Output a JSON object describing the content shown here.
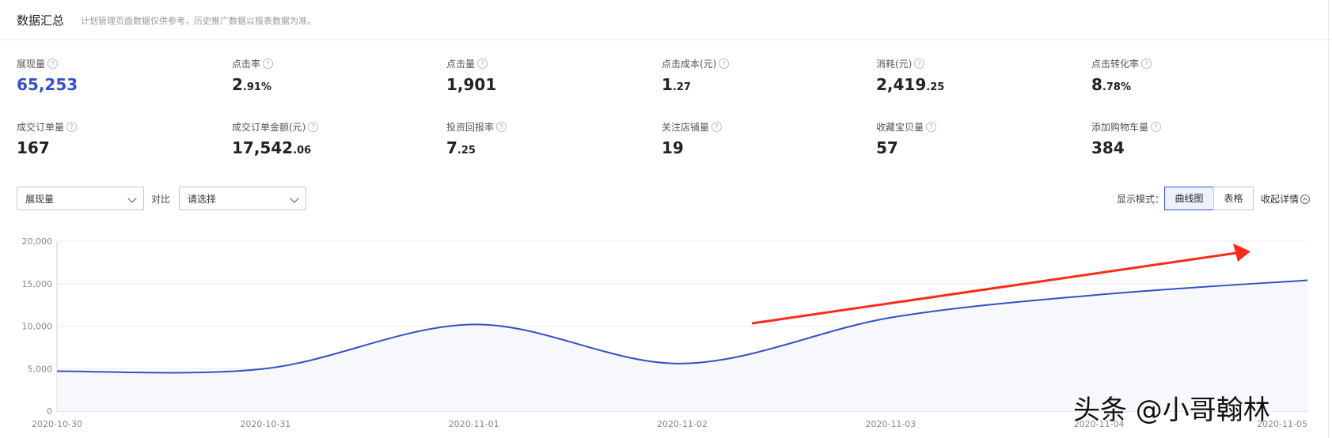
{
  "header": {
    "title": "数据汇总",
    "subtitle": "计划管理页面数据仅供参考，历史推广数据以报表数据为准。"
  },
  "metrics": [
    {
      "label": "展现量",
      "int": "65,253",
      "dec": ""
    },
    {
      "label": "点击率",
      "int": "2",
      "dec": ".91%"
    },
    {
      "label": "点击量",
      "int": "1,901",
      "dec": ""
    },
    {
      "label": "点击成本(元)",
      "int": "1",
      "dec": ".27"
    },
    {
      "label": "消耗(元)",
      "int": "2,419",
      "dec": ".25"
    },
    {
      "label": "点击转化率",
      "int": "8",
      "dec": ".78%"
    },
    {
      "label": "成交订单量",
      "int": "167",
      "dec": ""
    },
    {
      "label": "成交订单金额(元)",
      "int": "17,542",
      "dec": ".06"
    },
    {
      "label": "投资回报率",
      "int": "7",
      "dec": ".25"
    },
    {
      "label": "关注店铺量",
      "int": "19",
      "dec": ""
    },
    {
      "label": "收藏宝贝量",
      "int": "57",
      "dec": ""
    },
    {
      "label": "添加购物车量",
      "int": "384",
      "dec": ""
    }
  ],
  "controls": {
    "metric_select": "展现量",
    "compare_label": "对比",
    "compare_select": "请选择",
    "mode_label": "显示模式：",
    "mode_curve": "曲线图",
    "mode_table": "表格",
    "collapse": "收起详情"
  },
  "help_glyph": "?",
  "watermark": "头条 @小哥翰林",
  "colors": {
    "line": "#3450c8",
    "area": "#f7f8fc",
    "arrow": "#ff2a1a",
    "primary_value": "#3450c8"
  },
  "chart_data": {
    "type": "line",
    "x": [
      "2020-10-30",
      "2020-10-31",
      "2020-11-01",
      "2020-11-02",
      "2020-11-03",
      "2020-11-04",
      "2020-11-05"
    ],
    "series": [
      {
        "values": [
          4700,
          5000,
          10200,
          5600,
          11000,
          13700,
          15400
        ]
      }
    ],
    "ylim": [
      0,
      20000
    ],
    "yticks": [
      0,
      5000,
      10000,
      15000,
      20000
    ],
    "ytick_labels": [
      "0",
      "5,000",
      "10,000",
      "15,000",
      "20,000"
    ],
    "grid": true,
    "area_fill": true
  }
}
